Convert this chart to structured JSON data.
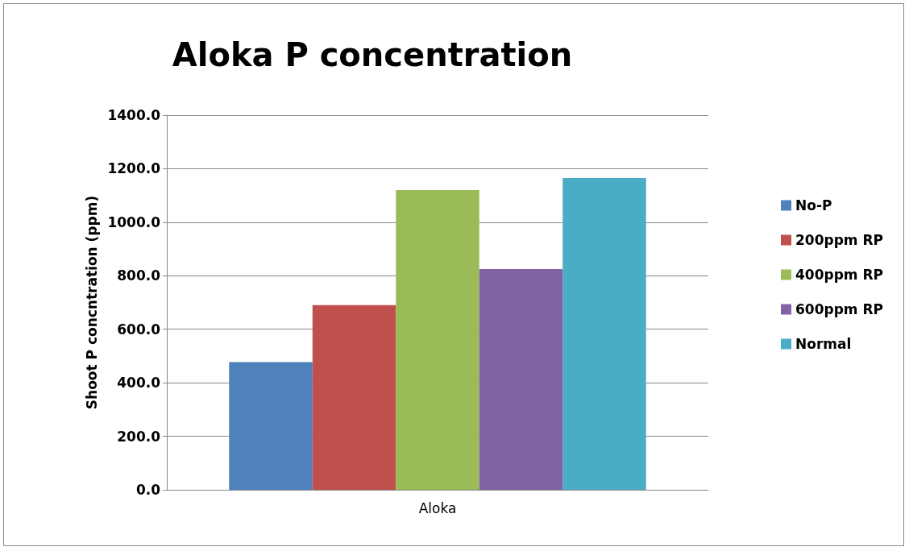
{
  "chart_data": {
    "type": "bar",
    "title": "Aloka P concentration",
    "ylabel": "Shoot P concntration (ppm)",
    "categories": [
      "Aloka"
    ],
    "series": [
      {
        "name": "No-P",
        "color": "#4f81bd",
        "values": [
          477
        ]
      },
      {
        "name": "200ppm RP",
        "color": "#c0504d",
        "values": [
          690
        ]
      },
      {
        "name": "400ppm RP",
        "color": "#9bbb59",
        "values": [
          1120
        ]
      },
      {
        "name": "600ppm RP",
        "color": "#8064a2",
        "values": [
          825
        ]
      },
      {
        "name": "Normal",
        "color": "#4bacc6",
        "values": [
          1165
        ]
      }
    ],
    "ylim": [
      0,
      1400
    ],
    "yticks": [
      {
        "value": 0,
        "label": "0.0"
      },
      {
        "value": 200,
        "label": "200.0"
      },
      {
        "value": 400,
        "label": "400.0"
      },
      {
        "value": 600,
        "label": "600.0"
      },
      {
        "value": 800,
        "label": "800.0"
      },
      {
        "value": 1000,
        "label": "1000.0"
      },
      {
        "value": 1200,
        "label": "1200.0"
      },
      {
        "value": 1400,
        "label": "1400.0"
      }
    ],
    "grid": "y",
    "legend": "right"
  }
}
